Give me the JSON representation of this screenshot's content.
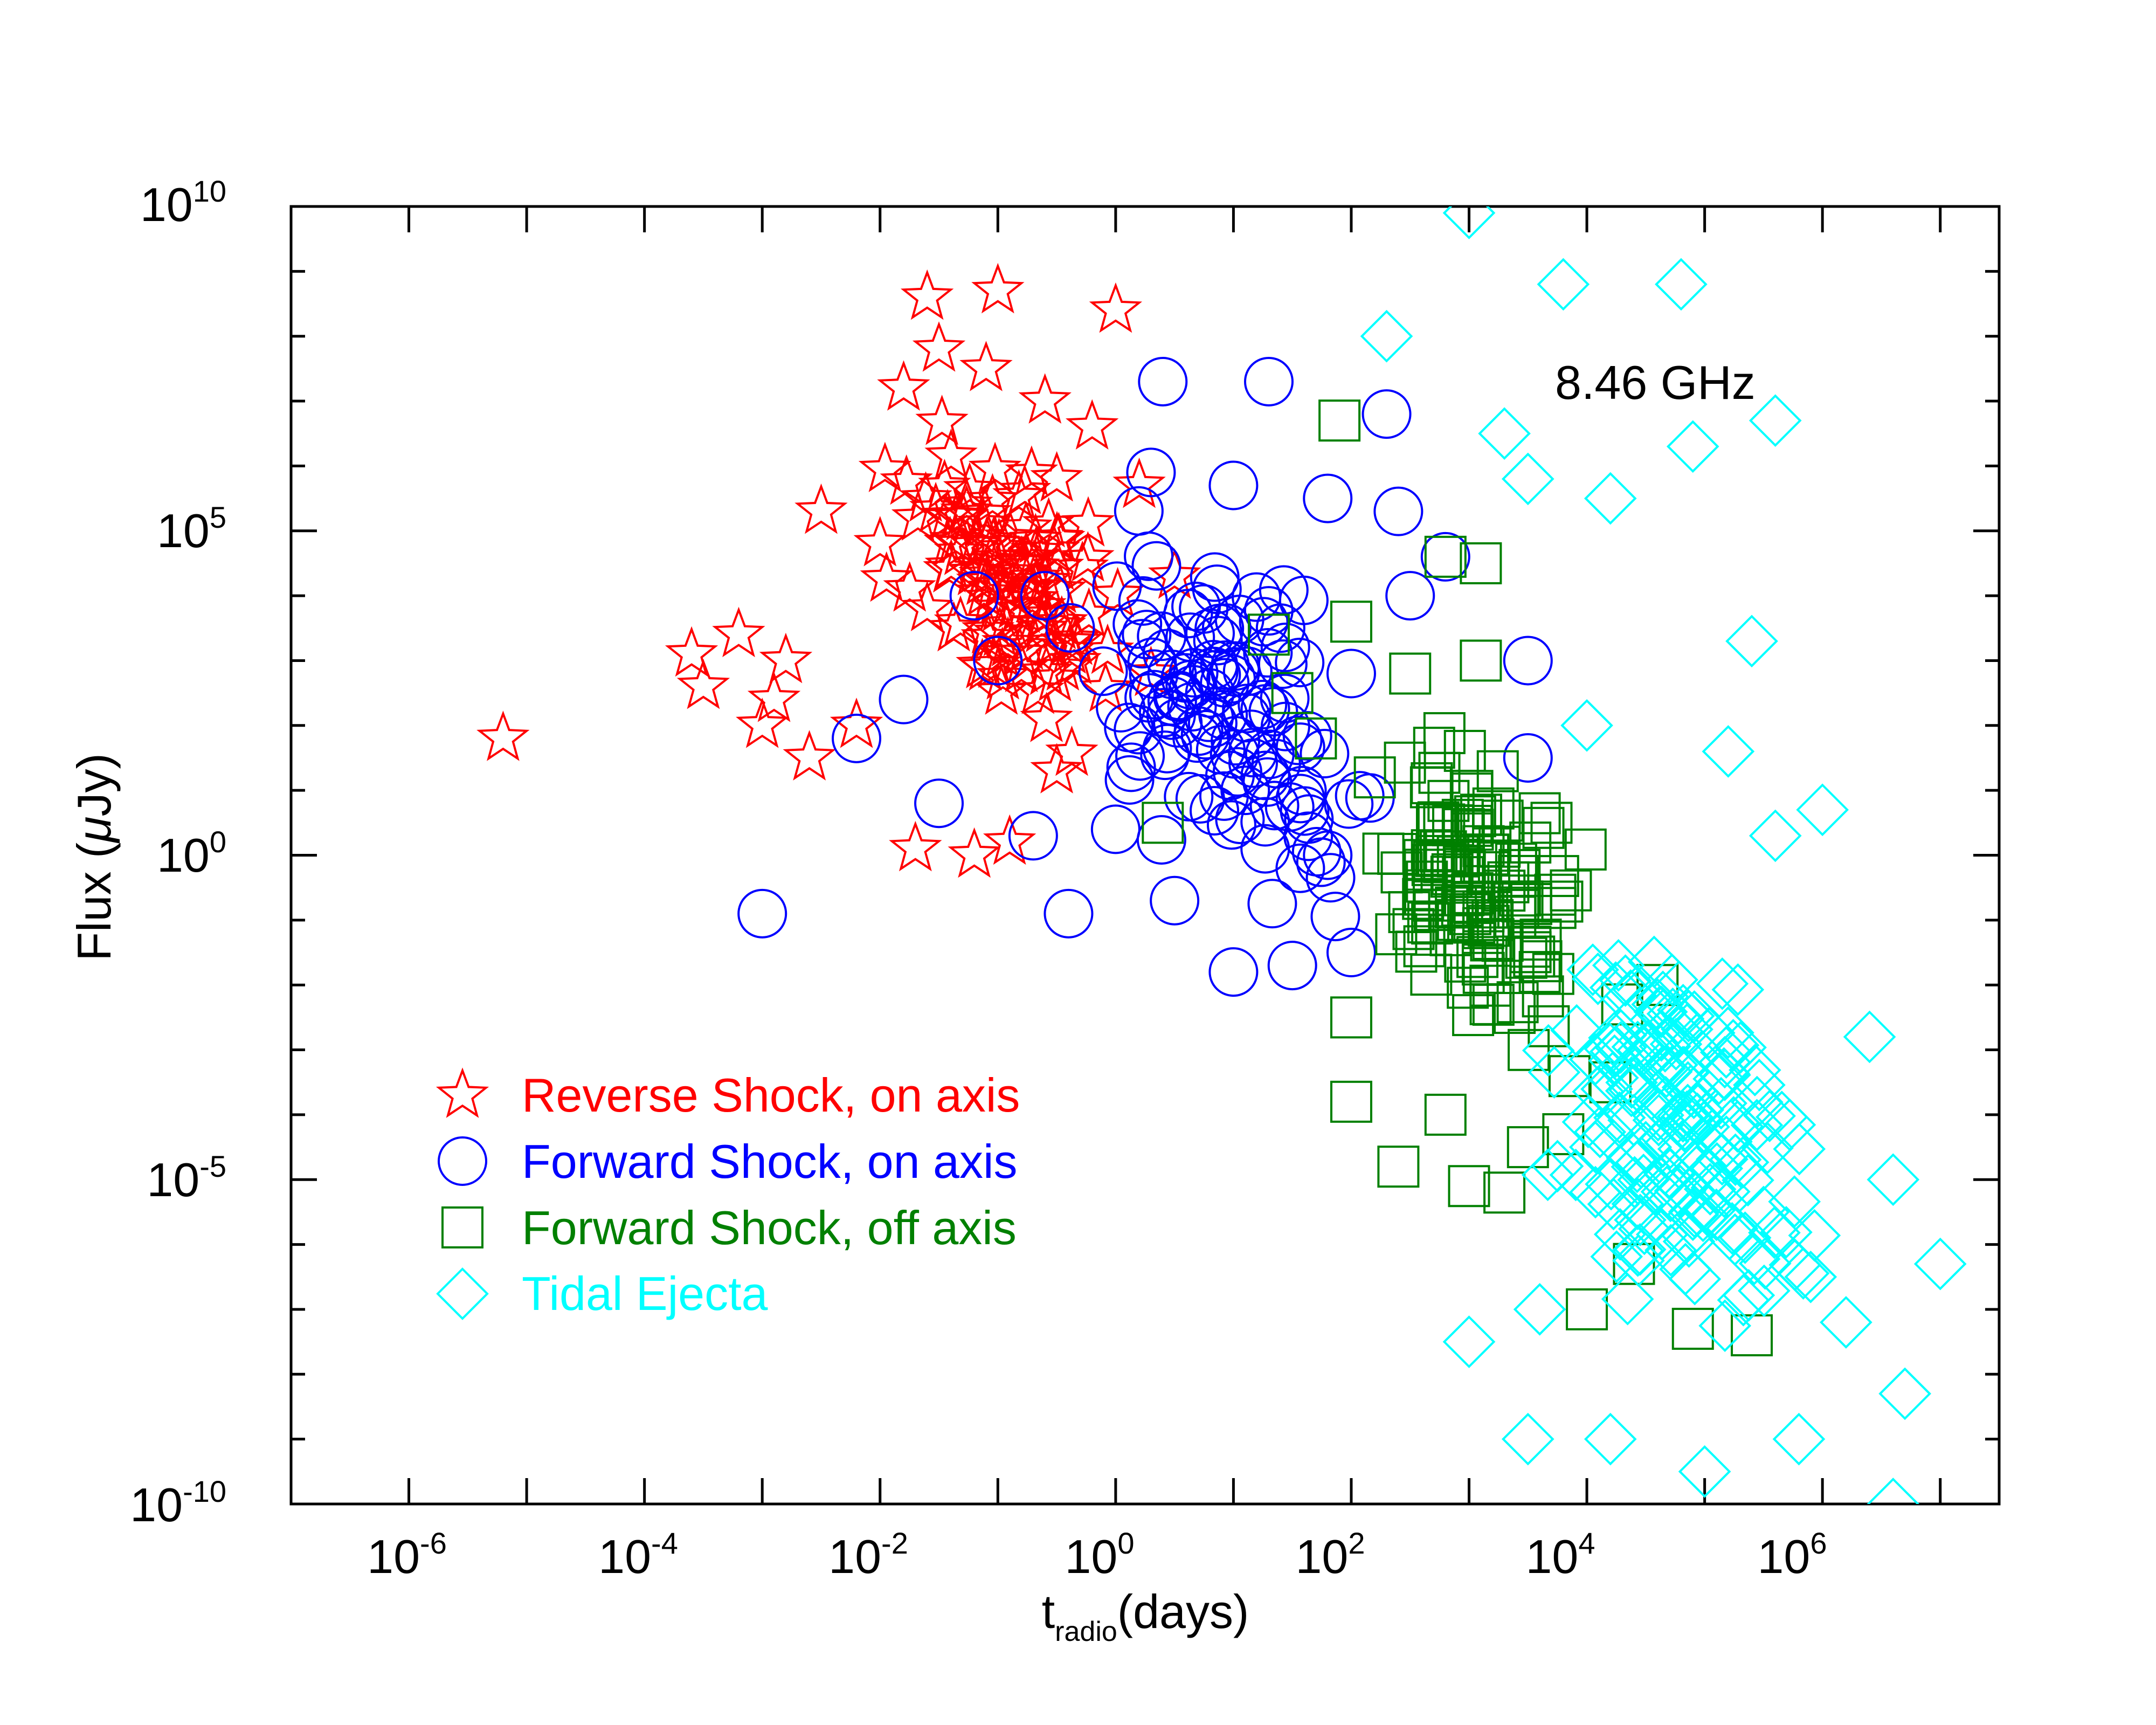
{
  "chart_data": {
    "type": "scatter",
    "annotation": "8.46 GHz",
    "xlabel": {
      "main": "t",
      "sub": "radio",
      "rest": "(days)"
    },
    "ylabel": {
      "pre": "Flux (",
      "greek": "μ",
      "post": "Jy)"
    },
    "x_scale": "log",
    "y_scale": "log",
    "xlim_log10": [
      -7,
      7.5
    ],
    "ylim_log10": [
      -10,
      10
    ],
    "x_tick_labels": [
      {
        "base": "10",
        "exp": "-6",
        "log10": -6
      },
      {
        "base": "10",
        "exp": "-4",
        "log10": -4
      },
      {
        "base": "10",
        "exp": "-2",
        "log10": -2
      },
      {
        "base": "10",
        "exp": "0",
        "log10": 0
      },
      {
        "base": "10",
        "exp": "2",
        "log10": 2
      },
      {
        "base": "10",
        "exp": "4",
        "log10": 4
      },
      {
        "base": "10",
        "exp": "6",
        "log10": 6
      }
    ],
    "y_tick_labels": [
      {
        "base": "10",
        "exp": "10",
        "log10": 10
      },
      {
        "base": "10",
        "exp": "5",
        "log10": 5
      },
      {
        "base": "10",
        "exp": "0",
        "log10": 0
      },
      {
        "base": "10",
        "exp": "-5",
        "log10": -5
      },
      {
        "base": "10",
        "exp": "-10",
        "log10": -10
      }
    ],
    "series": [
      {
        "name": "Reverse Shock, on axis",
        "marker": "star",
        "color": "#ff0000",
        "key_points_log10": [
          [
            -5.2,
            1.8
          ],
          [
            -3.6,
            3.1
          ],
          [
            -3.2,
            3.4
          ],
          [
            -2.8,
            3.0
          ],
          [
            -3.5,
            2.6
          ],
          [
            -2.9,
            2.4
          ],
          [
            -2.5,
            5.3
          ],
          [
            -2.0,
            4.8
          ],
          [
            -1.8,
            7.2
          ],
          [
            -1.6,
            8.6
          ],
          [
            -1.0,
            8.7
          ],
          [
            0.0,
            8.4
          ],
          [
            -1.5,
            7.8
          ],
          [
            -1.1,
            7.5
          ],
          [
            -0.6,
            7.0
          ],
          [
            -0.2,
            6.6
          ],
          [
            -0.5,
            5.8
          ],
          [
            -1.3,
            5.2
          ],
          [
            -0.8,
            4.5
          ],
          [
            -1.6,
            3.8
          ],
          [
            -2.2,
            2.0
          ],
          [
            -2.6,
            1.5
          ],
          [
            -3.0,
            2.0
          ],
          [
            -1.7,
            0.1
          ],
          [
            -1.2,
            0.0
          ],
          [
            -0.9,
            0.2
          ],
          [
            -0.5,
            1.3
          ],
          [
            0.3,
            2.8
          ],
          [
            0.5,
            4.3
          ],
          [
            0.2,
            5.7
          ]
        ],
        "n_cloud": 110,
        "cloud_center_log10": [
          -0.9,
          4.2
        ],
        "cloud_spread_log10": [
          0.8,
          1.7
        ]
      },
      {
        "name": "Forward Shock, on axis",
        "marker": "circle",
        "color": "#0000ff",
        "key_points_log10": [
          [
            -3.0,
            -0.9
          ],
          [
            0.4,
            7.3
          ],
          [
            1.3,
            7.3
          ],
          [
            2.3,
            6.8
          ],
          [
            0.3,
            5.9
          ],
          [
            1.0,
            5.7
          ],
          [
            1.8,
            5.5
          ],
          [
            2.4,
            5.3
          ],
          [
            2.8,
            4.6
          ],
          [
            -1.2,
            4.0
          ],
          [
            -0.6,
            4.0
          ],
          [
            -1.0,
            3.0
          ],
          [
            -1.8,
            2.4
          ],
          [
            -2.2,
            1.8
          ],
          [
            -1.5,
            0.8
          ],
          [
            -0.7,
            0.3
          ],
          [
            -0.4,
            -0.9
          ],
          [
            0.0,
            0.4
          ],
          [
            0.5,
            -0.7
          ],
          [
            1.0,
            -1.8
          ],
          [
            1.5,
            -1.7
          ],
          [
            2.0,
            -1.5
          ],
          [
            3.5,
            3.0
          ],
          [
            3.5,
            1.5
          ],
          [
            0.8,
            2.5
          ],
          [
            1.4,
            3.5
          ],
          [
            2.0,
            2.8
          ],
          [
            2.5,
            4.0
          ],
          [
            1.1,
            1.0
          ],
          [
            1.8,
            0.0
          ]
        ],
        "n_cloud": 120,
        "cloud_center_log10": [
          1.0,
          2.0
        ],
        "cloud_spread_log10": [
          1.1,
          2.0
        ]
      },
      {
        "name": "Forward Shock, off axis",
        "marker": "square",
        "color": "#008000",
        "key_points_log10": [
          [
            1.9,
            6.7
          ],
          [
            2.8,
            4.6
          ],
          [
            3.1,
            4.5
          ],
          [
            2.0,
            3.6
          ],
          [
            1.3,
            3.4
          ],
          [
            0.4,
            0.5
          ],
          [
            1.5,
            2.5
          ],
          [
            2.5,
            2.8
          ],
          [
            3.1,
            3.0
          ],
          [
            2.0,
            -2.5
          ],
          [
            2.0,
            -3.8
          ],
          [
            2.4,
            -4.8
          ],
          [
            2.8,
            -4.0
          ],
          [
            3.0,
            -5.1
          ],
          [
            3.3,
            -5.2
          ],
          [
            3.5,
            -4.5
          ],
          [
            3.8,
            -4.3
          ],
          [
            4.0,
            -7.0
          ],
          [
            4.4,
            -6.3
          ],
          [
            4.9,
            -7.3
          ],
          [
            5.4,
            -7.4
          ],
          [
            4.3,
            -2.3
          ],
          [
            3.2,
            -1.0
          ],
          [
            2.7,
            -0.7
          ],
          [
            3.6,
            -1.8
          ],
          [
            4.2,
            -3.5
          ],
          [
            2.2,
            1.2
          ],
          [
            1.7,
            1.8
          ],
          [
            3.7,
            0.5
          ],
          [
            4.6,
            -2.0
          ]
        ],
        "n_cloud": 120,
        "cloud_center_log10": [
          3.0,
          -0.6
        ],
        "cloud_spread_log10": [
          0.8,
          2.0
        ]
      },
      {
        "name": "Tidal Ejecta",
        "marker": "diamond",
        "color": "#00ffff",
        "key_points_log10": [
          [
            3.0,
            9.9
          ],
          [
            4.8,
            8.8
          ],
          [
            3.8,
            8.8
          ],
          [
            2.3,
            8.0
          ],
          [
            3.3,
            6.5
          ],
          [
            3.5,
            5.8
          ],
          [
            4.2,
            5.5
          ],
          [
            4.9,
            6.3
          ],
          [
            5.6,
            6.7
          ],
          [
            5.4,
            3.3
          ],
          [
            5.2,
            1.6
          ],
          [
            5.6,
            0.3
          ],
          [
            4.6,
            -2.3
          ],
          [
            6.0,
            0.7
          ],
          [
            6.4,
            -2.8
          ],
          [
            6.6,
            -5.0
          ],
          [
            7.0,
            -6.3
          ],
          [
            6.7,
            -8.3
          ],
          [
            6.6,
            -10.0
          ],
          [
            5.8,
            -9.0
          ],
          [
            5.0,
            -9.5
          ],
          [
            4.2,
            -9.0
          ],
          [
            3.6,
            -7.0
          ],
          [
            3.0,
            -7.5
          ],
          [
            3.5,
            -9.0
          ],
          [
            6.2,
            -7.2
          ],
          [
            5.9,
            -6.5
          ],
          [
            4.5,
            -4.5
          ],
          [
            5.5,
            -5.5
          ],
          [
            4.0,
            2.0
          ]
        ],
        "n_cloud": 160,
        "cloud_center_log10": [
          4.8,
          -4.2
        ],
        "cloud_spread_log10": [
          0.9,
          2.6
        ]
      }
    ]
  }
}
